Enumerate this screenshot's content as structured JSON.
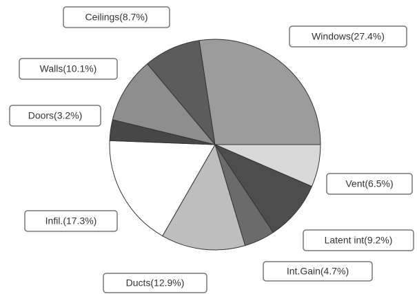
{
  "chart_data": {
    "type": "pie",
    "values": [
      6.5,
      9.2,
      4.7,
      12.9,
      17.3,
      3.2,
      10.1,
      8.7,
      27.4
    ],
    "value_labels": [
      "Vent(6.5%)",
      "Latent int(9.2%)",
      "Int.Gain(4.7%)",
      "Ducts(12.9%)",
      "Infil.(17.3%)",
      "Doors(3.2%)",
      "Walls(10.1%)",
      "Ceilings(8.7%)",
      "Windows(27.4%)"
    ],
    "colors": [
      "#d9d9d9",
      "#4d4d4d",
      "#6b6b6b",
      "#bebebe",
      "#ffffff",
      "#474747",
      "#8e8e8e",
      "#5c5c5c",
      "#9c9c9c"
    ]
  }
}
